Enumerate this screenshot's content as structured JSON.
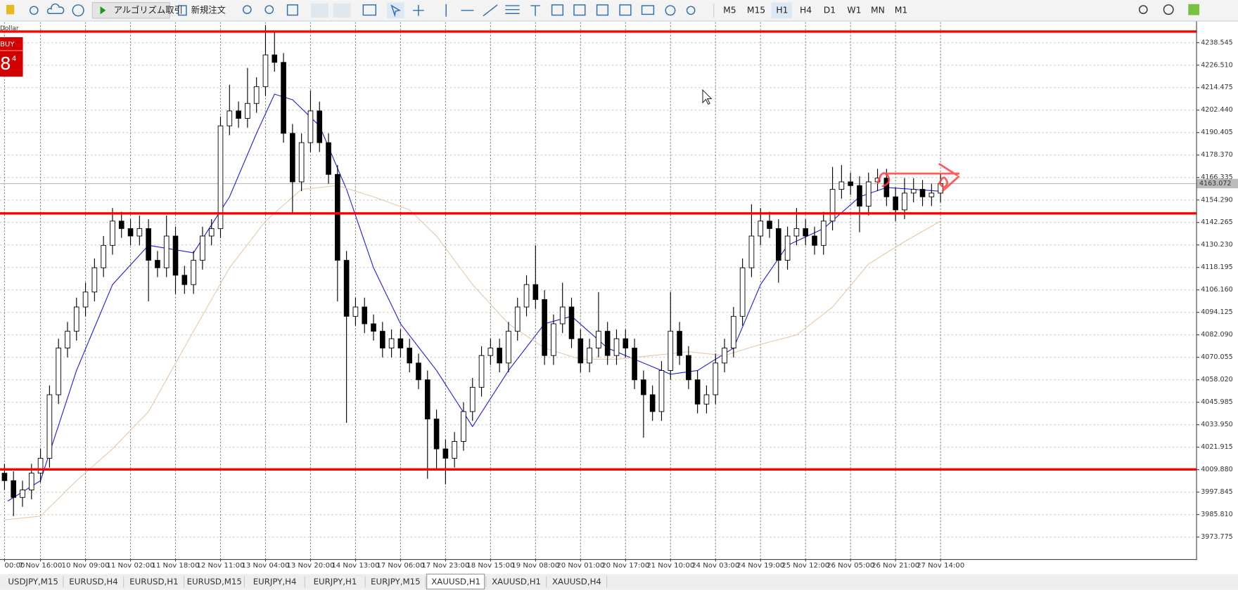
{
  "toolbar": {
    "buttons": [
      "アルゴリズム取引",
      "新規注文"
    ],
    "timeframes": [
      "M5",
      "M15",
      "H1",
      "H4",
      "D1",
      "W1",
      "MN",
      "M1"
    ],
    "active_timeframe": 2
  },
  "tabs": {
    "items": [
      "USDJPY,M15",
      "EURUSD,H4",
      "EURUSD,H1",
      "EURUSD,M15",
      "EURJPY,H4",
      "EURJPY,H1",
      "EURJPY,M15",
      "XAUUSD,H1",
      "XAUUSD,H1",
      "XAUUSD,H4"
    ],
    "active": 7
  },
  "chart_data": {
    "type": "candlestick",
    "symbol_label": "Dollar",
    "buy_label": "BUY",
    "price_big": "8",
    "price_small": "4",
    "ylim": [
      3962.4,
      4249.5
    ],
    "xlim": [
      -0.5,
      132.4
    ],
    "yticks": [
      4238.545,
      {
        "value": 4226.51,
        "label": "4226.510"
      },
      4214.475,
      {
        "value": 4202.44,
        "label": "4202.440"
      },
      4190.405,
      {
        "value": 4178.37,
        "label": "4178.370"
      },
      4166.335,
      {
        "value": 4154.29,
        "label": "4154.290"
      },
      4142.265,
      {
        "value": 4130.23,
        "label": "4130.230"
      },
      4118.195,
      {
        "value": 4106.16,
        "label": "4106.160"
      },
      4094.125,
      {
        "value": 4082.09,
        "label": "4082.090"
      },
      4070.055,
      {
        "value": 4058.02,
        "label": "4058.020"
      },
      4045.985,
      {
        "value": 4033.95,
        "label": "4033.950"
      },
      4021.915,
      {
        "value": 4009.88,
        "label": "4009.880"
      },
      3997.845,
      {
        "value": 3985.81,
        "label": "3985.810"
      },
      3973.775
    ],
    "xticks": [
      {
        "value": 0,
        "label": "00:00"
      },
      {
        "value": 4,
        "label": "7 Nov 16:00"
      },
      {
        "value": 9,
        "label": "10 Nov 09:00"
      },
      {
        "value": 14,
        "label": "11 Nov 02:00"
      },
      {
        "value": 19,
        "label": "11 Nov 18:00"
      },
      {
        "value": 24,
        "label": "12 Nov 11:00"
      },
      {
        "value": 29,
        "label": "13 Nov 04:00"
      },
      {
        "value": 34,
        "label": "13 Nov 20:00"
      },
      {
        "value": 39,
        "label": "14 Nov 13:00"
      },
      {
        "value": 44,
        "label": "17 Nov 06:00"
      },
      {
        "value": 49,
        "label": "17 Nov 23:00"
      },
      {
        "value": 54,
        "label": "18 Nov 15:00"
      },
      {
        "value": 59,
        "label": "19 Nov 08:00"
      },
      {
        "value": 64,
        "label": "20 Nov 01:00"
      },
      {
        "value": 69,
        "label": "20 Nov 17:00"
      },
      {
        "value": 74,
        "label": "21 Nov 10:00"
      },
      {
        "value": 79,
        "label": "24 Nov 03:00"
      },
      {
        "value": 84,
        "label": "24 Nov 19:00"
      },
      {
        "value": 89,
        "label": "25 Nov 12:00"
      },
      {
        "value": 94,
        "label": "26 Nov 05:00"
      },
      {
        "value": 99,
        "label": "26 Nov 21:00"
      },
      {
        "value": 104,
        "label": "27 Nov 14:00"
      }
    ],
    "grid": true,
    "current_price": {
      "value": 4163.072,
      "label": "4163.072",
      "color": "#bbbbbb"
    },
    "levels": {
      "color": "#ff0000",
      "values": [
        4244.5,
        4147.1,
        4010.0
      ]
    },
    "candles": [
      [
        4008,
        4013,
        3999,
        4004
      ],
      [
        4004,
        4009,
        3985,
        3995
      ],
      [
        3995,
        4004,
        3990,
        3999
      ],
      [
        3999,
        4013,
        3994,
        4008
      ],
      [
        4008,
        4021,
        4003,
        4016
      ],
      [
        4016,
        4055,
        4011,
        4050
      ],
      [
        4050,
        4080,
        4045,
        4075
      ],
      [
        4075,
        4089,
        4070,
        4084
      ],
      [
        4084,
        4102,
        4079,
        4097
      ],
      [
        4097,
        4110,
        4092,
        4105
      ],
      [
        4105,
        4123,
        4100,
        4118
      ],
      [
        4118,
        4135,
        4113,
        4130
      ],
      [
        4130,
        4150,
        4125,
        4143
      ],
      [
        4143,
        4148,
        4134,
        4139
      ],
      [
        4139,
        4144,
        4130,
        4135
      ],
      [
        4135,
        4146,
        4130,
        4139
      ],
      [
        4139,
        4144,
        4100,
        4122
      ],
      [
        4122,
        4127,
        4113,
        4118
      ],
      [
        4118,
        4146,
        4113,
        4135
      ],
      [
        4135,
        4140,
        4104,
        4114
      ],
      [
        4114,
        4119,
        4104,
        4109
      ],
      [
        4109,
        4127,
        4104,
        4122
      ],
      [
        4122,
        4140,
        4117,
        4135
      ],
      [
        4135,
        4144,
        4130,
        4139
      ],
      [
        4139,
        4199,
        4134,
        4194
      ],
      [
        4194,
        4216,
        4189,
        4202
      ],
      [
        4202,
        4207,
        4193,
        4198
      ],
      [
        4198,
        4225,
        4193,
        4206
      ],
      [
        4206,
        4220,
        4201,
        4215
      ],
      [
        4215,
        4248,
        4210,
        4232
      ],
      [
        4232,
        4245,
        4223,
        4228
      ],
      [
        4228,
        4233,
        4185,
        4190
      ],
      [
        4190,
        4195,
        4147,
        4164
      ],
      [
        4164,
        4190,
        4159,
        4185
      ],
      [
        4185,
        4213,
        4180,
        4202
      ],
      [
        4202,
        4207,
        4180,
        4185
      ],
      [
        4185,
        4190,
        4163,
        4168
      ],
      [
        4168,
        4173,
        4100,
        4122
      ],
      [
        4122,
        4127,
        4035,
        4092
      ],
      [
        4092,
        4102,
        4087,
        4097
      ],
      [
        4097,
        4102,
        4083,
        4088
      ],
      [
        4088,
        4093,
        4079,
        4084
      ],
      [
        4084,
        4089,
        4070,
        4075
      ],
      [
        4075,
        4085,
        4070,
        4080
      ],
      [
        4080,
        4085,
        4070,
        4075
      ],
      [
        4075,
        4080,
        4062,
        4067
      ],
      [
        4067,
        4072,
        4053,
        4058
      ],
      [
        4058,
        4063,
        4005,
        4037
      ],
      [
        4037,
        4042,
        4010,
        4021
      ],
      [
        4021,
        4026,
        4002,
        4016
      ],
      [
        4016,
        4030,
        4011,
        4025
      ],
      [
        4025,
        4046,
        4020,
        4041
      ],
      [
        4041,
        4059,
        4036,
        4054
      ],
      [
        4054,
        4076,
        4049,
        4071
      ],
      [
        4071,
        4080,
        4066,
        4075
      ],
      [
        4075,
        4080,
        4062,
        4067
      ],
      [
        4067,
        4089,
        4062,
        4084
      ],
      [
        4084,
        4102,
        4079,
        4097
      ],
      [
        4097,
        4114,
        4092,
        4109
      ],
      [
        4109,
        4130,
        4096,
        4101
      ],
      [
        4101,
        4106,
        4066,
        4071
      ],
      [
        4071,
        4093,
        4066,
        4088
      ],
      [
        4088,
        4110,
        4083,
        4097
      ],
      [
        4097,
        4102,
        4075,
        4080
      ],
      [
        4080,
        4085,
        4062,
        4067
      ],
      [
        4067,
        4080,
        4062,
        4075
      ],
      [
        4075,
        4105,
        4070,
        4084
      ],
      [
        4084,
        4089,
        4066,
        4071
      ],
      [
        4071,
        4085,
        4066,
        4080
      ],
      [
        4080,
        4085,
        4070,
        4075
      ],
      [
        4075,
        4080,
        4053,
        4058
      ],
      [
        4058,
        4063,
        4027,
        4050
      ],
      [
        4050,
        4055,
        4036,
        4041
      ],
      [
        4041,
        4068,
        4036,
        4063
      ],
      [
        4063,
        4105,
        4058,
        4084
      ],
      [
        4084,
        4089,
        4066,
        4071
      ],
      [
        4071,
        4076,
        4053,
        4058
      ],
      [
        4058,
        4063,
        4040,
        4045
      ],
      [
        4045,
        4055,
        4040,
        4050
      ],
      [
        4050,
        4072,
        4045,
        4067
      ],
      [
        4067,
        4080,
        4062,
        4075
      ],
      [
        4075,
        4097,
        4070,
        4092
      ],
      [
        4092,
        4123,
        4087,
        4118
      ],
      [
        4118,
        4152,
        4113,
        4135
      ],
      [
        4135,
        4150,
        4130,
        4143
      ],
      [
        4143,
        4148,
        4134,
        4139
      ],
      [
        4139,
        4144,
        4110,
        4122
      ],
      [
        4122,
        4140,
        4117,
        4135
      ],
      [
        4135,
        4150,
        4130,
        4139
      ],
      [
        4139,
        4144,
        4130,
        4135
      ],
      [
        4135,
        4140,
        4125,
        4130
      ],
      [
        4130,
        4148,
        4125,
        4143
      ],
      [
        4143,
        4172,
        4138,
        4160
      ],
      [
        4160,
        4173,
        4155,
        4164
      ],
      [
        4164,
        4169,
        4157,
        4162
      ],
      [
        4162,
        4167,
        4137,
        4151
      ],
      [
        4151,
        4169,
        4146,
        4164
      ],
      [
        4164,
        4171,
        4159,
        4166
      ],
      [
        4166,
        4171,
        4151,
        4156
      ],
      [
        4156,
        4161,
        4143,
        4149
      ],
      [
        4149,
        4166,
        4144,
        4158
      ],
      [
        4158,
        4166,
        4153,
        4160
      ],
      [
        4160,
        4165,
        4151,
        4156
      ],
      [
        4156,
        4163,
        4151,
        4158
      ],
      [
        4158,
        4168,
        4153,
        4163
      ]
    ],
    "series": [
      {
        "color": "#2020e0",
        "x": [
          0.35,
          4,
          8,
          12,
          16,
          21,
          25,
          28,
          30,
          32,
          35,
          38,
          41,
          44,
          48,
          52,
          56,
          60,
          63,
          67,
          71,
          74,
          77,
          81,
          84,
          87,
          91,
          95,
          98,
          104
        ],
        "values": [
          3993,
          4004,
          4063,
          4109,
          4130,
          4126,
          4156,
          4190,
          4211,
          4208,
          4194,
          4160,
          4118,
          4088,
          4063,
          4033,
          4063,
          4088,
          4092,
          4075,
          4067,
          4061,
          4063,
          4075,
          4109,
          4130,
          4139,
          4156,
          4161,
          4159
        ]
      },
      {
        "color": "#e8c8a8",
        "x": [
          0,
          4,
          8,
          12,
          16,
          21,
          25,
          29,
          33,
          37,
          41,
          45,
          48,
          52,
          56,
          60,
          64,
          68,
          72,
          76,
          80,
          84,
          88,
          92,
          96,
          100,
          104
        ],
        "values": [
          3983,
          3985,
          4004,
          4021,
          4041,
          4084,
          4118,
          4143,
          4160,
          4162,
          4156,
          4149,
          4135,
          4109,
          4088,
          4075,
          4069,
          4069,
          4071,
          4073,
          4071,
          4077,
          4082,
          4097,
          4120,
          4132,
          4143
        ]
      }
    ]
  }
}
